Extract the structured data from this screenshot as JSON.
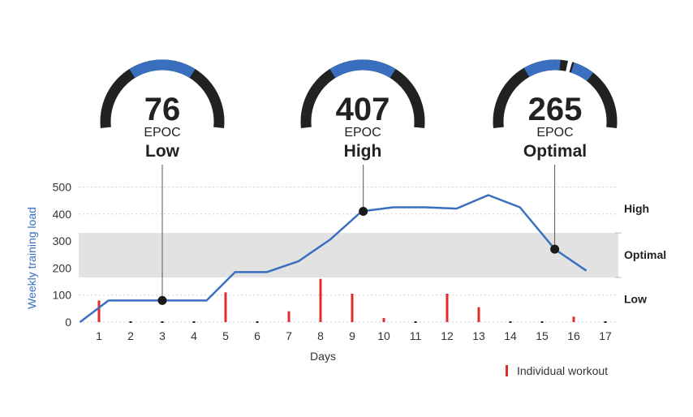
{
  "colors": {
    "line": "#3a6fc0",
    "workout": "#e02b2b",
    "band": "#e2e2e2",
    "gauge_dark": "#222222",
    "gauge_highlight": "#3a6fc0",
    "marker": "#1a1a1a"
  },
  "chart_data": {
    "type": "line",
    "xlabel": "Days",
    "ylabel": "Weekly training load",
    "x_ticks": [
      1,
      2,
      3,
      4,
      5,
      6,
      7,
      8,
      9,
      10,
      11,
      12,
      13,
      14,
      15,
      16,
      17
    ],
    "y_ticks": [
      0,
      100,
      200,
      300,
      400,
      500
    ],
    "xlim": [
      0.4,
      17.4
    ],
    "ylim": [
      0,
      500
    ],
    "grid": "horizontal dashed",
    "optimal_band": [
      165,
      330
    ],
    "zone_labels": [
      {
        "label": "High",
        "y": 420
      },
      {
        "label": "Optimal",
        "y": 250
      },
      {
        "label": "Low",
        "y": 85
      }
    ],
    "series": [
      {
        "name": "",
        "type": "line",
        "x": [
          0.4,
          1.3,
          3,
          4.4,
          5.3,
          6.3,
          7.3,
          8.3,
          9.3,
          10.3,
          11.3,
          12.3,
          13.3,
          14.3,
          15.4,
          16.4
        ],
        "y": [
          0,
          80,
          80,
          80,
          185,
          185,
          225,
          305,
          410,
          425,
          425,
          420,
          470,
          425,
          270,
          190
        ]
      },
      {
        "name": "Individual workout",
        "type": "bar",
        "x": [
          1,
          2,
          3,
          4,
          5,
          6,
          7,
          8,
          9,
          10,
          11,
          12,
          13,
          14,
          15,
          16,
          17
        ],
        "y": [
          80,
          3,
          3,
          3,
          110,
          3,
          40,
          160,
          105,
          15,
          3,
          105,
          55,
          3,
          3,
          20,
          3
        ]
      }
    ],
    "markers": [
      {
        "x": 3,
        "y": 80
      },
      {
        "x": 9.35,
        "y": 410
      },
      {
        "x": 15.4,
        "y": 270
      }
    ],
    "gauges": [
      {
        "value": "76",
        "unit": "EPOC",
        "level": "Low"
      },
      {
        "value": "407",
        "unit": "EPOC",
        "level": "High"
      },
      {
        "value": "265",
        "unit": "EPOC",
        "level": "Optimal"
      }
    ],
    "legend": {
      "label": "Individual workout",
      "position": "bottom-right"
    }
  }
}
